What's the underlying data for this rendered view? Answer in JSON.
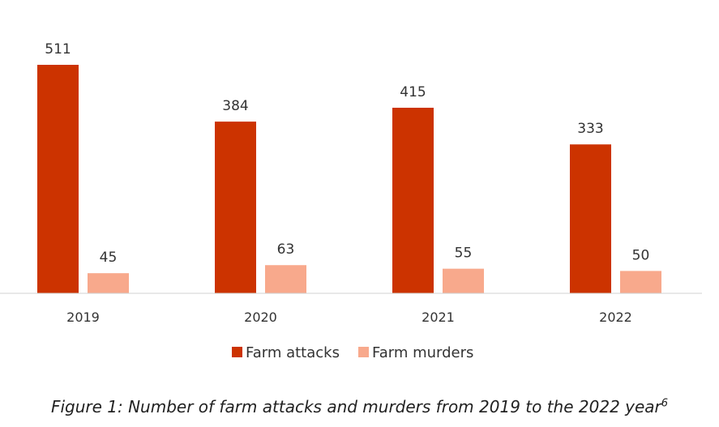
{
  "chart_data": {
    "type": "bar",
    "categories": [
      "2019",
      "2020",
      "2021",
      "2022"
    ],
    "series": [
      {
        "name": "Farm attacks",
        "values": [
          511,
          384,
          415,
          333
        ],
        "color": "#cc3300"
      },
      {
        "name": "Farm murders",
        "values": [
          45,
          63,
          55,
          50
        ],
        "color": "#f8a98c"
      }
    ],
    "ylim": [
      0,
      511
    ],
    "grid": false,
    "legend_position": "bottom"
  },
  "caption": {
    "text": "Figure 1: Number of farm attacks and murders from 2019 to the 2022 year",
    "footnote": "6"
  }
}
